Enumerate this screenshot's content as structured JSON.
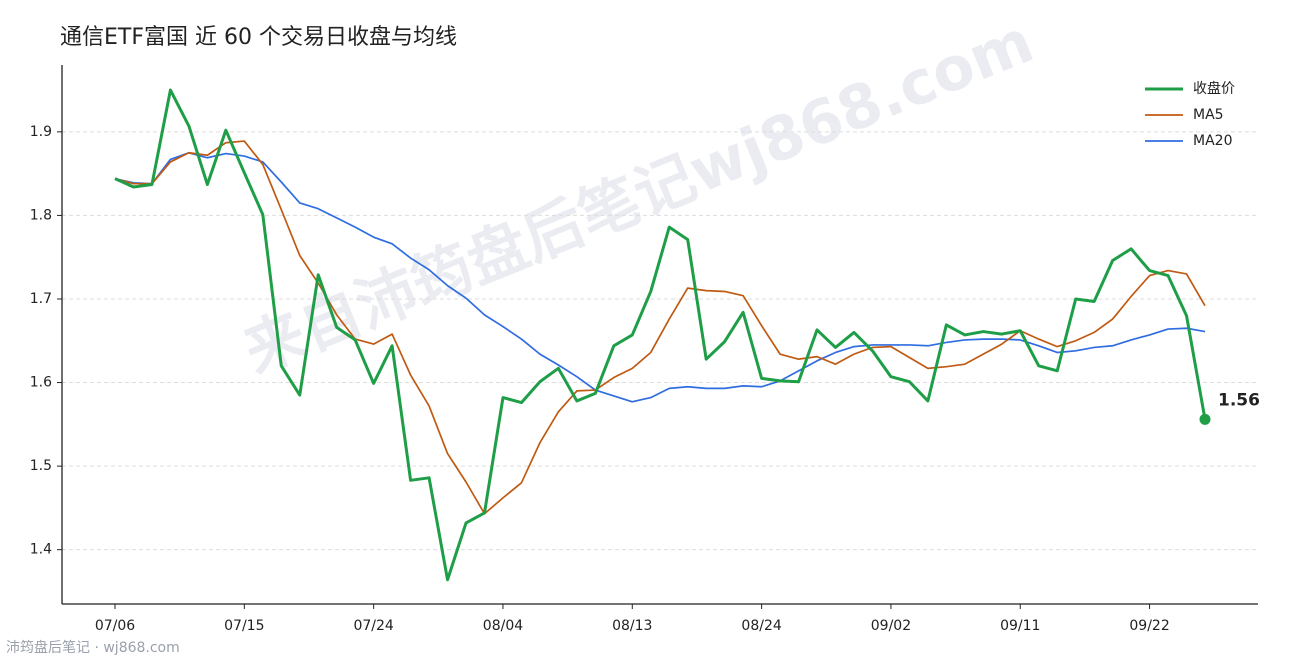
{
  "chart_data": {
    "type": "line",
    "title": "通信ETF富国 近 60 个交易日收盘与均线",
    "watermark": "来自沛筠盘后笔记wj868.com",
    "footer": "沛筠盘后笔记 · wj868.com",
    "categories": [
      "07/06",
      null,
      null,
      null,
      null,
      null,
      null,
      "07/15",
      null,
      null,
      null,
      null,
      null,
      null,
      "07/24",
      null,
      null,
      null,
      null,
      null,
      null,
      "08/04",
      null,
      null,
      null,
      null,
      null,
      null,
      "08/13",
      null,
      null,
      null,
      null,
      null,
      null,
      "08/24",
      null,
      null,
      null,
      null,
      null,
      null,
      "09/02",
      null,
      null,
      null,
      null,
      null,
      null,
      "09/11",
      null,
      null,
      null,
      null,
      null,
      null,
      "09/22",
      null,
      null,
      null
    ],
    "series": [
      {
        "name": "收盘价",
        "color": "#1f9e48",
        "values": [
          1.844,
          1.834,
          1.837,
          1.95,
          1.907,
          1.837,
          1.902,
          1.851,
          1.801,
          1.62,
          1.585,
          1.729,
          1.666,
          1.651,
          1.599,
          1.644,
          1.483,
          1.486,
          1.364,
          1.432,
          1.444,
          1.582,
          1.576,
          1.601,
          1.617,
          1.578,
          1.587,
          1.644,
          1.657,
          1.709,
          1.786,
          1.771,
          1.628,
          1.649,
          1.684,
          1.605,
          1.602,
          1.601,
          1.663,
          1.642,
          1.66,
          1.638,
          1.607,
          1.601,
          1.578,
          1.669,
          1.657,
          1.661,
          1.658,
          1.662,
          1.62,
          1.614,
          1.7,
          1.697,
          1.746,
          1.76,
          1.734,
          1.728,
          1.68,
          1.556
        ],
        "value_labels": [
          null,
          null,
          null,
          null,
          null,
          null,
          null,
          null,
          null,
          null,
          null,
          null,
          null,
          null,
          null,
          null,
          null,
          null,
          null,
          null,
          null,
          null,
          null,
          null,
          null,
          null,
          null,
          null,
          null,
          null,
          null,
          null,
          null,
          null,
          null,
          null,
          null,
          null,
          null,
          null,
          null,
          null,
          null,
          null,
          null,
          null,
          null,
          null,
          null,
          null,
          null,
          null,
          null,
          null,
          null,
          null,
          null,
          null,
          null,
          "1.56"
        ]
      },
      {
        "name": "MA5",
        "color": "#c05a12",
        "values": [
          1.844,
          1.838,
          1.838,
          1.864,
          1.875,
          1.872,
          1.887,
          1.889,
          1.861,
          1.807,
          1.752,
          1.719,
          1.681,
          1.652,
          1.646,
          1.658,
          1.609,
          1.572,
          1.515,
          1.481,
          1.443,
          1.462,
          1.48,
          1.528,
          1.565,
          1.59,
          1.591,
          1.606,
          1.617,
          1.636,
          1.676,
          1.713,
          1.71,
          1.709,
          1.704,
          1.668,
          1.634,
          1.628,
          1.631,
          1.622,
          1.634,
          1.642,
          1.643,
          1.63,
          1.617,
          1.619,
          1.622,
          1.634,
          1.646,
          1.662,
          1.652,
          1.643,
          1.65,
          1.66,
          1.676,
          1.703,
          1.728,
          1.734,
          1.73,
          1.692
        ]
      },
      {
        "name": "MA20",
        "color": "#2f6de0",
        "values": [
          1.844,
          1.839,
          1.838,
          1.867,
          1.875,
          1.869,
          1.874,
          1.871,
          1.864,
          1.84,
          1.815,
          1.808,
          1.797,
          1.786,
          1.774,
          1.766,
          1.749,
          1.735,
          1.716,
          1.701,
          1.681,
          1.667,
          1.652,
          1.634,
          1.621,
          1.607,
          1.591,
          1.584,
          1.577,
          1.582,
          1.593,
          1.595,
          1.593,
          1.593,
          1.596,
          1.595,
          1.602,
          1.614,
          1.626,
          1.636,
          1.643,
          1.645,
          1.645,
          1.645,
          1.644,
          1.648,
          1.651,
          1.652,
          1.652,
          1.651,
          1.644,
          1.636,
          1.638,
          1.642,
          1.644,
          1.651,
          1.657,
          1.664,
          1.665,
          1.661
        ]
      }
    ],
    "ylim": [
      1.335,
      1.98
    ],
    "yticks": [
      1.4,
      1.5,
      1.6,
      1.7,
      1.8,
      1.9
    ],
    "grid": true,
    "legend": "upper right"
  }
}
